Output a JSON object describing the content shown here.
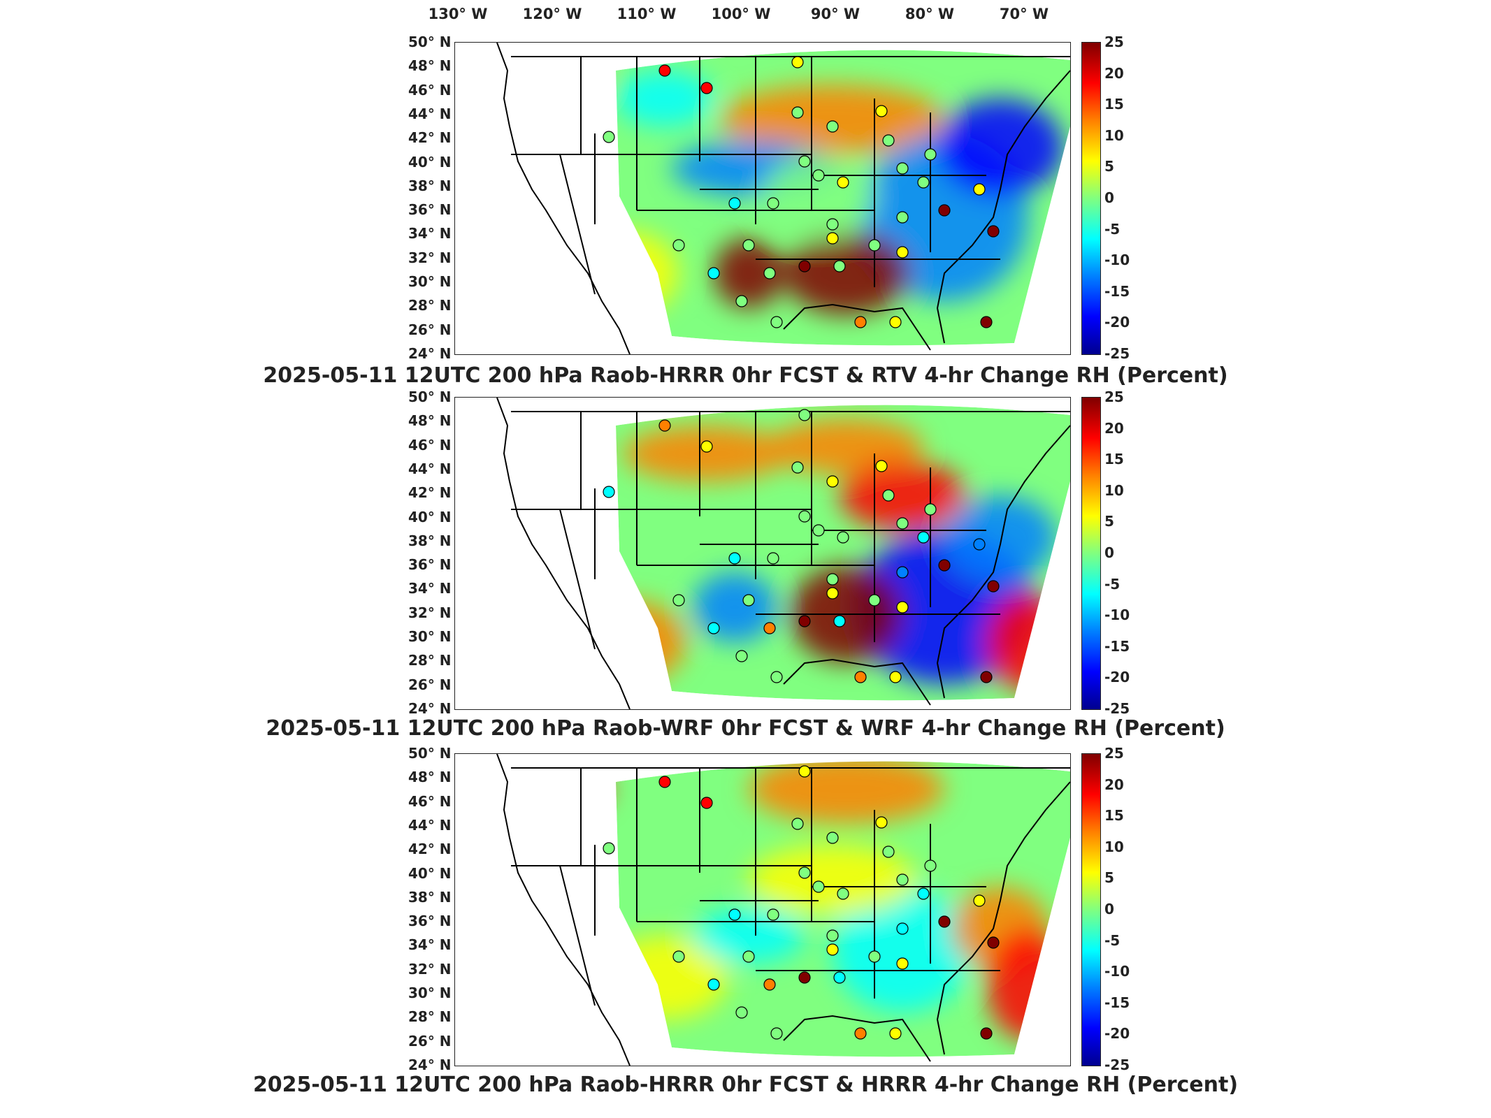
{
  "lon_labels": [
    "130° W",
    "120° W",
    "110° W",
    "100° W",
    "90° W",
    "80° W",
    "70° W"
  ],
  "lat_labels": [
    "50° N",
    "48° N",
    "46° N",
    "44° N",
    "42° N",
    "40° N",
    "38° N",
    "36° N",
    "34° N",
    "32° N",
    "30° N",
    "28° N",
    "26° N",
    "24° N"
  ],
  "colorbar": {
    "ticks": [
      "25",
      "20",
      "15",
      "10",
      "5",
      "0",
      "-5",
      "-10",
      "-15",
      "-20",
      "-25"
    ],
    "range": [
      -25,
      25
    ],
    "colormap": [
      "#00008f",
      "#0000ff",
      "#0080ff",
      "#00ffff",
      "#80ff80",
      "#ffff00",
      "#ff8000",
      "#ff0000",
      "#800000"
    ]
  },
  "panels": [
    {
      "title": "2025-05-11 12UTC 200 hPa Raob-HRRR 0hr FCST & RTV 4-hr Change RH (Percent)"
    },
    {
      "title": "2025-05-11 12UTC 200 hPa Raob-WRF 0hr FCST & WRF 4-hr Change RH (Percent)"
    },
    {
      "title": "2025-05-11 12UTC 200 hPa Raob-HRRR 0hr FCST & HRRR 4-hr Change RH (Percent)"
    }
  ]
}
